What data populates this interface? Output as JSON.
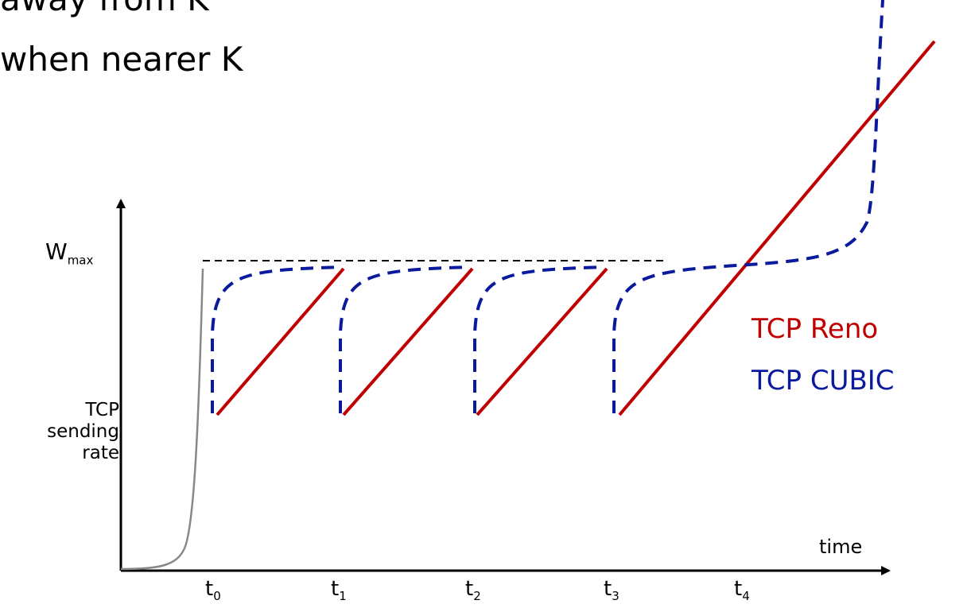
{
  "slide": {
    "heading_line1": "away from K",
    "heading_line2": "when nearer K"
  },
  "axes": {
    "y_max_label_base": "W",
    "y_max_label_sub": "max",
    "y_label_lines": [
      "TCP",
      "sending",
      "rate"
    ],
    "x_label": "time",
    "x_ticks": [
      {
        "base": "t",
        "sub": "0"
      },
      {
        "base": "t",
        "sub": "1"
      },
      {
        "base": "t",
        "sub": "2"
      },
      {
        "base": "t",
        "sub": "3"
      },
      {
        "base": "t",
        "sub": "4"
      }
    ]
  },
  "legend": {
    "reno": "TCP Reno",
    "cubic": "TCP CUBIC"
  },
  "colors": {
    "reno": "#c00000",
    "cubic": "#0a1a9c",
    "slow_start": "#888888",
    "axis": "#000000"
  }
}
